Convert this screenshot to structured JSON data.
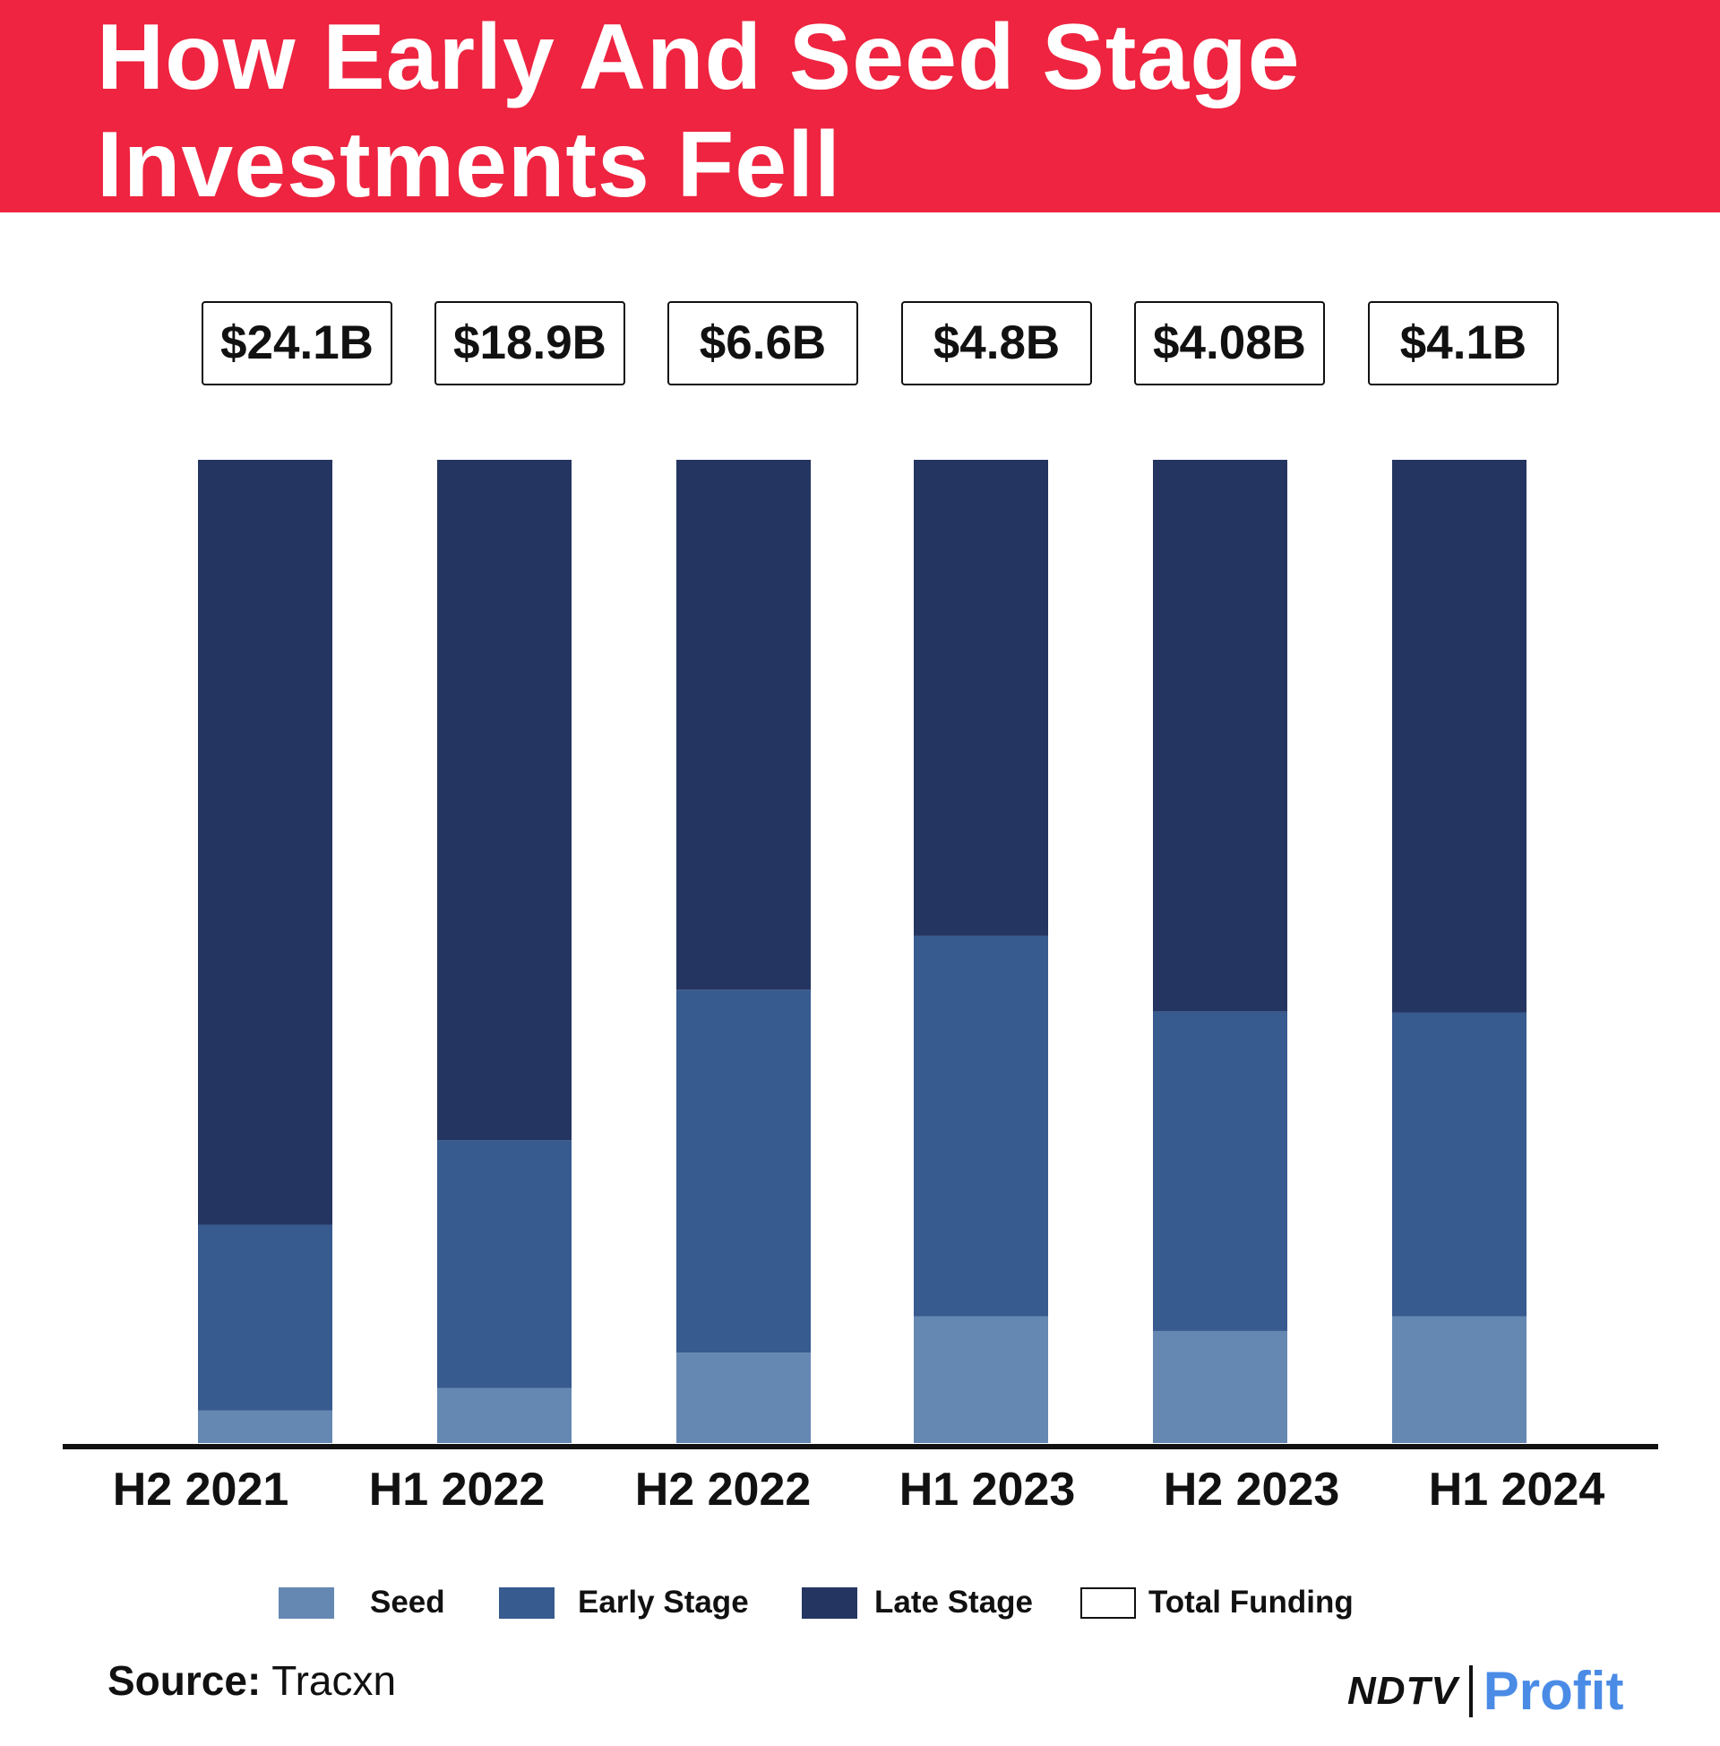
{
  "title": "How Early And Seed Stage Investments Fell",
  "colors": {
    "title_band": "#ee2440",
    "seed": "#6588b3",
    "early": "#375a8f",
    "late": "#253561",
    "logo_profit": "#4a8be6"
  },
  "chart_data": {
    "type": "bar",
    "stacked": true,
    "percent_stacked": true,
    "categories": [
      "H2 2021",
      "H1 2022",
      "H2 2022",
      "H1 2023",
      "H2 2023",
      "H1 2024"
    ],
    "series": [
      {
        "name": "Seed",
        "values": [
          3.3,
          5.6,
          9.2,
          12.9,
          11.4,
          12.9
        ]
      },
      {
        "name": "Early Stage",
        "values": [
          18.9,
          25.2,
          36.9,
          38.7,
          32.5,
          30.9
        ]
      },
      {
        "name": "Late Stage",
        "values": [
          77.8,
          69.2,
          53.9,
          48.4,
          56.1,
          56.2
        ]
      }
    ],
    "total_funding": [
      "$24.1B",
      "$18.9B",
      "$6.6B",
      "$4.8B",
      "$4.08B",
      "$4.1B"
    ],
    "ylim": [
      0,
      100
    ],
    "grid": false,
    "legend_position": "bottom"
  },
  "legend": {
    "seed": "Seed",
    "early": "Early Stage",
    "late": "Late Stage",
    "total": "Total Funding"
  },
  "source": {
    "label": "Source:",
    "value": "Tracxn"
  },
  "logo": {
    "ndtv": "NDTV",
    "profit": "Profit"
  }
}
